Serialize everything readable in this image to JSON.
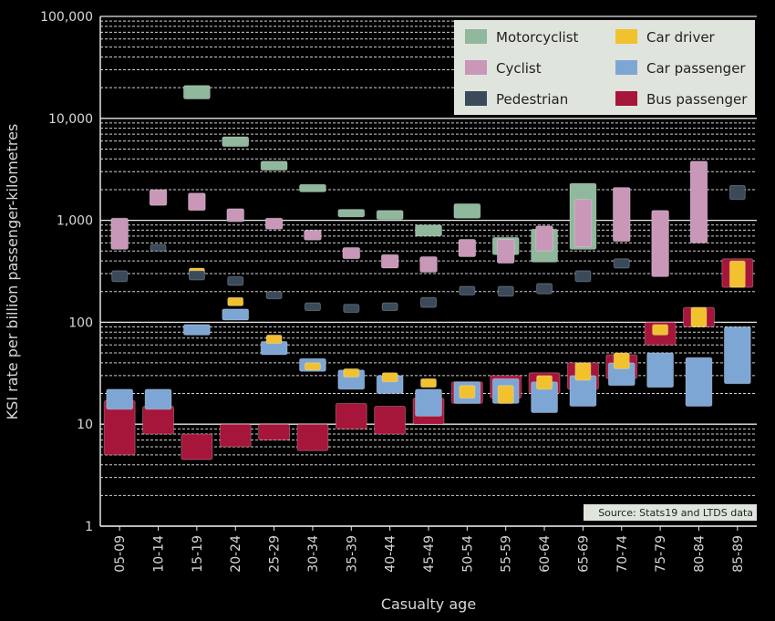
{
  "chart_data": {
    "type": "bar",
    "xlabel": "Casualty age",
    "ylabel": "KSI rate per billion passenger-kilometres",
    "yscale": "log",
    "ylim": [
      1,
      100000
    ],
    "y_ticks": [
      "1",
      "10",
      "100",
      "1,000",
      "10,000",
      "100,000"
    ],
    "grid": true,
    "legend_position": "top-right",
    "source": "Source: Stats19 and LTDS data",
    "categories": [
      "05-09",
      "10-14",
      "15-19",
      "20-24",
      "25-29",
      "30-34",
      "35-39",
      "40-44",
      "45-49",
      "50-54",
      "55-59",
      "60-64",
      "65-69",
      "70-74",
      "75-79",
      "80-84",
      "85-89"
    ],
    "series": [
      {
        "name": "Bus passenger",
        "color": "#a6163a",
        "ranges": [
          [
            5,
            17
          ],
          [
            8,
            15
          ],
          [
            4.5,
            8
          ],
          [
            6,
            10
          ],
          [
            7,
            10
          ],
          [
            5.5,
            10
          ],
          [
            9,
            16
          ],
          [
            8,
            15
          ],
          [
            10,
            18
          ],
          [
            16,
            26
          ],
          [
            18,
            30
          ],
          [
            20,
            32
          ],
          [
            22,
            40
          ],
          [
            28,
            48
          ],
          [
            60,
            100
          ],
          [
            90,
            140
          ],
          [
            220,
            420
          ]
        ]
      },
      {
        "name": "Car passenger",
        "color": "#7ea6d4",
        "ranges": [
          [
            14,
            22
          ],
          [
            14,
            22
          ],
          [
            75,
            95
          ],
          [
            105,
            135
          ],
          [
            48,
            65
          ],
          [
            33,
            44
          ],
          [
            22,
            34
          ],
          [
            20,
            30
          ],
          [
            12,
            22
          ],
          [
            16,
            26
          ],
          [
            16,
            28
          ],
          [
            13,
            26
          ],
          [
            15,
            30
          ],
          [
            24,
            40
          ],
          [
            23,
            50
          ],
          [
            15,
            45
          ],
          [
            25,
            90
          ]
        ]
      },
      {
        "name": "Car driver",
        "color": "#f2c12e",
        "ranges": [
          null,
          null,
          [
            290,
            340
          ],
          [
            145,
            175
          ],
          [
            62,
            75
          ],
          [
            34,
            40
          ],
          [
            29,
            35
          ],
          [
            26,
            32
          ],
          [
            23,
            28
          ],
          [
            18,
            24
          ],
          [
            16,
            24
          ],
          [
            22,
            30
          ],
          [
            27,
            40
          ],
          [
            35,
            50
          ],
          [
            75,
            95
          ],
          [
            90,
            140
          ],
          [
            220,
            400
          ]
        ]
      },
      {
        "name": "Pedestrian",
        "color": "#3a4a5a",
        "ranges": [
          [
            250,
            320
          ],
          [
            500,
            580
          ],
          [
            260,
            320
          ],
          [
            230,
            280
          ],
          [
            170,
            200
          ],
          [
            130,
            155
          ],
          [
            125,
            150
          ],
          [
            130,
            155
          ],
          [
            140,
            175
          ],
          [
            185,
            225
          ],
          [
            180,
            225
          ],
          [
            190,
            240
          ],
          [
            250,
            320
          ],
          [
            340,
            420
          ],
          [
            520,
            650
          ],
          [
            760,
            1000
          ],
          [
            1600,
            2200
          ]
        ]
      },
      {
        "name": "Motorcyclist",
        "color": "#8fb89c",
        "ranges": [
          null,
          null,
          [
            15500,
            21000
          ],
          [
            5300,
            6600
          ],
          [
            3100,
            3800
          ],
          [
            1900,
            2250
          ],
          [
            1080,
            1280
          ],
          [
            1020,
            1250
          ],
          [
            700,
            900
          ],
          [
            1050,
            1450
          ],
          [
            460,
            680
          ],
          [
            390,
            820
          ],
          [
            520,
            2300
          ],
          null,
          null,
          null,
          null
        ]
      },
      {
        "name": "Cyclist",
        "color": "#c997b8",
        "ranges": [
          [
            520,
            1050
          ],
          [
            1400,
            2000
          ],
          [
            1250,
            1850
          ],
          [
            970,
            1300
          ],
          [
            820,
            1050
          ],
          [
            640,
            800
          ],
          [
            420,
            540
          ],
          [
            340,
            460
          ],
          [
            310,
            440
          ],
          [
            440,
            650
          ],
          [
            380,
            650
          ],
          [
            500,
            880
          ],
          [
            550,
            1600
          ],
          [
            620,
            2100
          ],
          [
            280,
            1250
          ],
          [
            600,
            3800
          ],
          null
        ]
      }
    ],
    "legend": [
      {
        "name": "Motorcyclist",
        "color": "#8fb89c"
      },
      {
        "name": "Car driver",
        "color": "#f2c12e"
      },
      {
        "name": "Cyclist",
        "color": "#c997b8"
      },
      {
        "name": "Car passenger",
        "color": "#7ea6d4"
      },
      {
        "name": "Pedestrian",
        "color": "#3a4a5a"
      },
      {
        "name": "Bus passenger",
        "color": "#a6163a"
      }
    ]
  }
}
